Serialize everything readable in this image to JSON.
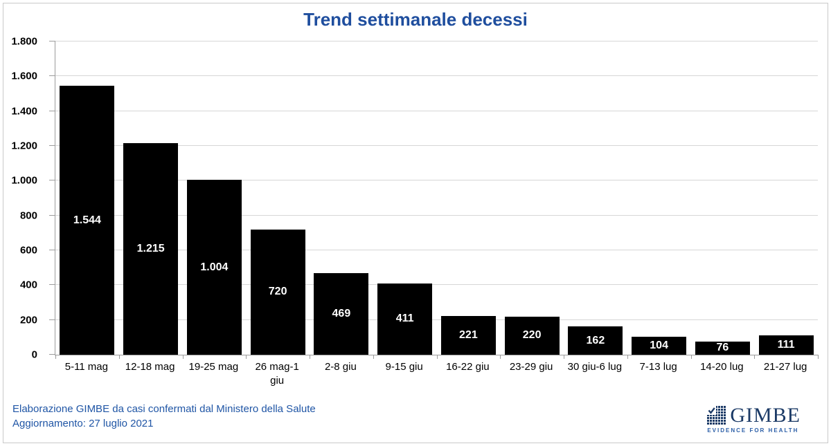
{
  "title": "Trend settimanale decessi",
  "footer": {
    "line1": "Elaborazione GIMBE da casi confermati dal Ministero della Salute",
    "line2": "Aggiornamento: 27 luglio 2021"
  },
  "logo": {
    "wordmark": "GIMBE",
    "tagline": "EVIDENCE FOR HEALTH",
    "icon": "gimbe-grid-check-icon"
  },
  "colors": {
    "background": "#FFFFFF",
    "frame_border": "#C9C9C9",
    "title": "#1F4E9E",
    "footer": "#1F55A5",
    "bar": "#000000",
    "bar_label": "#FFFFFF",
    "gridline": "#D6D6D6",
    "axis": "#9B9B9B",
    "axis_text": "#000000",
    "logo_navy": "#1B3A66",
    "logo_tagline": "#2B5EA7"
  },
  "chart_data": {
    "type": "bar",
    "title": "Trend settimanale decessi",
    "categories": [
      "5-11 mag",
      "12-18 mag",
      "19-25 mag",
      "26 mag-1 giu",
      "2-8 giu",
      "9-15 giu",
      "16-22 giu",
      "23-29 giu",
      "30 giu-6 lug",
      "7-13 lug",
      "14-20 lug",
      "21-27 lug"
    ],
    "values": [
      1544,
      1215,
      1004,
      720,
      469,
      411,
      221,
      220,
      162,
      104,
      76,
      111
    ],
    "value_labels": [
      "1.544",
      "1.215",
      "1.004",
      "720",
      "469",
      "411",
      "221",
      "220",
      "162",
      "104",
      "76",
      "111"
    ],
    "xlabel": "",
    "ylabel": "",
    "ylim": [
      0,
      1800
    ],
    "yticks": [
      0,
      200,
      400,
      600,
      800,
      1000,
      1200,
      1400,
      1600,
      1800
    ],
    "ytick_labels": [
      "0",
      "200",
      "400",
      "600",
      "800",
      "1.000",
      "1.200",
      "1.400",
      "1.600",
      "1.800"
    ],
    "grid": true,
    "legend": false,
    "bar_width_fraction": 0.86
  }
}
